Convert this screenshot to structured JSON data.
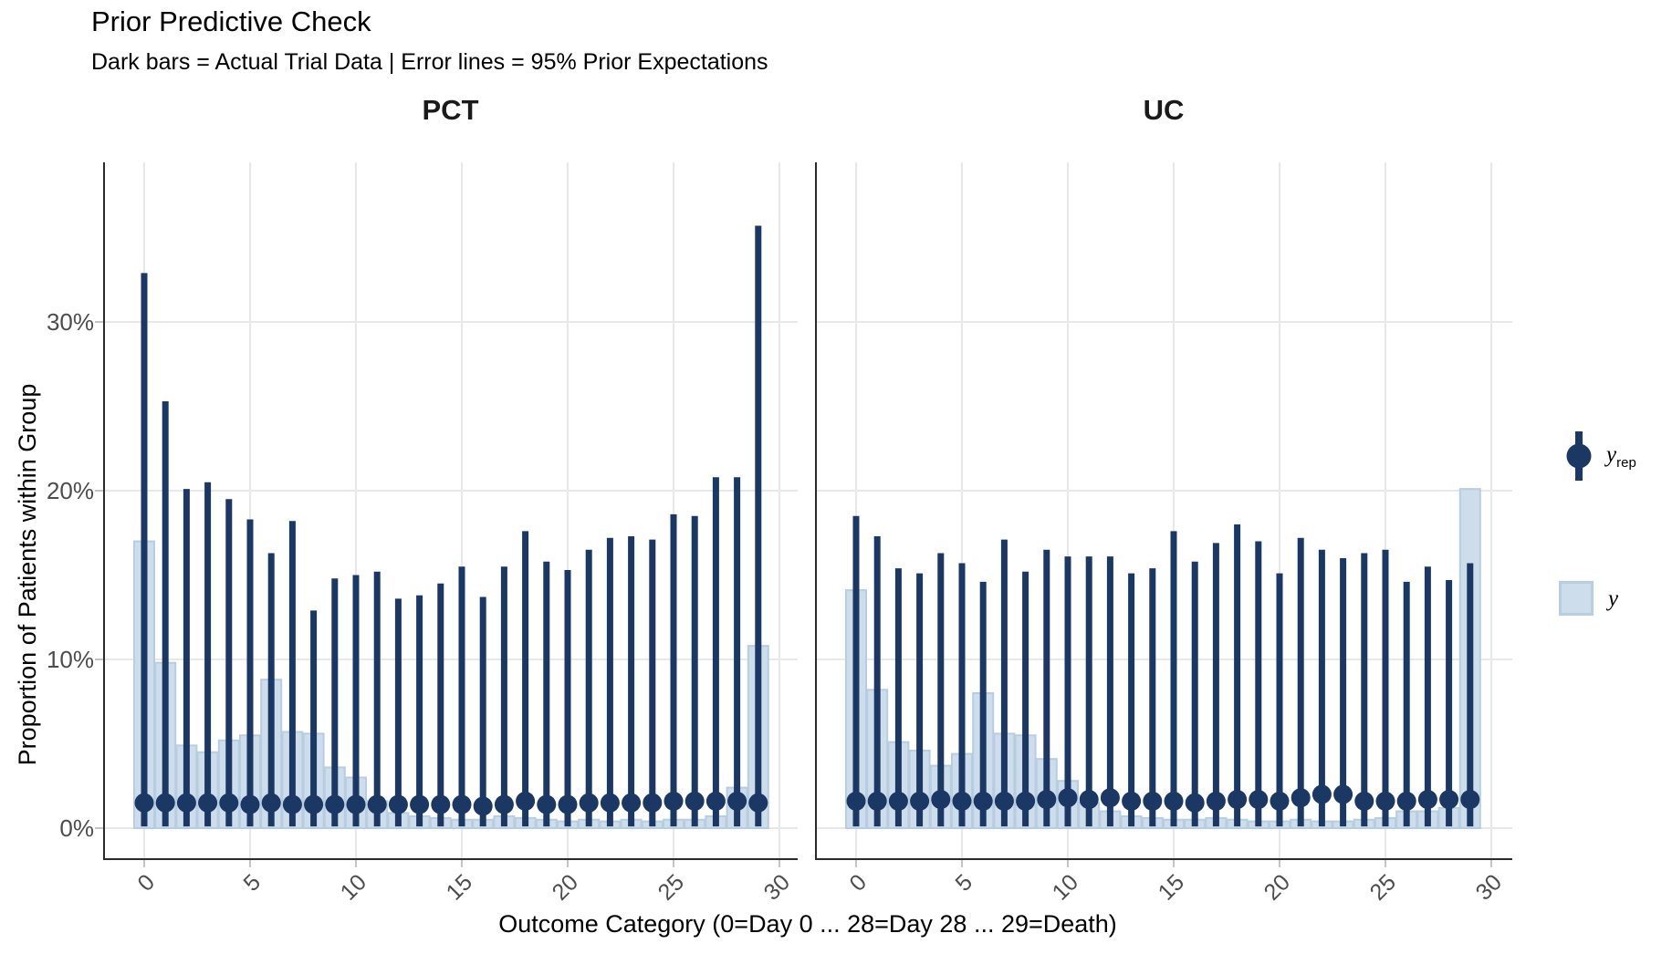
{
  "title": "Prior Predictive Check",
  "subtitle": "Dark bars = Actual Trial Data | Error lines = 95% Prior Expectations",
  "facets": [
    {
      "label": "PCT"
    },
    {
      "label": "UC"
    }
  ],
  "y_axis": {
    "title": "Proportion of Patients within Group",
    "tick_labels": [
      "0%",
      "10%",
      "20%",
      "30%"
    ]
  },
  "x_axis": {
    "title": "Outcome Category (0=Day 0 ... 28=Day 28 ... 29=Death)",
    "tick_labels": [
      "0",
      "5",
      "10",
      "15",
      "20",
      "25",
      "30"
    ]
  },
  "legend": {
    "yrep_label_base": "y",
    "yrep_label_sub": "rep",
    "y_label_base": "y"
  },
  "colors": {
    "dark_navy": "#1b3764",
    "light_fill": "#cdddec",
    "light_border": "#b7cde0",
    "gridline": "#e8e8e8",
    "axis_line": "#2b2b2b",
    "tick_text": "#4d4d4d",
    "tick_mark": "#c4c4c4",
    "text": "#000000"
  },
  "chart_data": {
    "type": "bar",
    "title": "Prior Predictive Check",
    "subtitle": "Dark bars = Actual Trial Data | Error lines = 95% Prior Expectations",
    "xlabel": "Outcome Category (0=Day 0 ... 28=Day 28 ... 29=Death)",
    "ylabel": "Proportion of Patients within Group",
    "ylim_pct": [
      0,
      40
    ],
    "y_ticks_pct": [
      0,
      10,
      20,
      30
    ],
    "x_ticks": [
      0,
      5,
      10,
      15,
      20,
      25,
      30
    ],
    "grid": true,
    "legend_position": "right",
    "categories": [
      0,
      1,
      2,
      3,
      4,
      5,
      6,
      7,
      8,
      9,
      10,
      11,
      12,
      13,
      14,
      15,
      16,
      17,
      18,
      19,
      20,
      21,
      22,
      23,
      24,
      25,
      26,
      27,
      28,
      29
    ],
    "yrep_lower_pct": 0.1,
    "panels": [
      {
        "name": "PCT",
        "y_actual_pct": [
          17.0,
          9.8,
          4.9,
          4.5,
          5.2,
          5.5,
          8.8,
          5.7,
          5.6,
          3.6,
          3.0,
          1.6,
          0.9,
          0.7,
          0.6,
          0.5,
          0.5,
          0.7,
          0.6,
          0.5,
          0.4,
          0.5,
          0.4,
          0.5,
          0.4,
          0.5,
          0.5,
          0.7,
          2.4,
          10.8
        ],
        "yrep_upper_pct": [
          32.9,
          25.3,
          20.1,
          20.5,
          19.5,
          18.3,
          16.3,
          18.2,
          12.9,
          14.8,
          15.0,
          15.2,
          13.6,
          13.8,
          14.5,
          15.5,
          13.7,
          15.5,
          17.6,
          15.8,
          15.3,
          16.5,
          17.2,
          17.3,
          17.1,
          18.6,
          18.5,
          20.8,
          20.8,
          35.7
        ],
        "yrep_median_pct": [
          1.5,
          1.5,
          1.5,
          1.5,
          1.5,
          1.4,
          1.5,
          1.4,
          1.4,
          1.4,
          1.4,
          1.4,
          1.4,
          1.4,
          1.4,
          1.4,
          1.3,
          1.4,
          1.6,
          1.4,
          1.4,
          1.5,
          1.5,
          1.5,
          1.5,
          1.6,
          1.6,
          1.6,
          1.6,
          1.5
        ]
      },
      {
        "name": "UC",
        "y_actual_pct": [
          14.1,
          8.2,
          5.1,
          4.6,
          3.7,
          4.4,
          8.0,
          5.6,
          5.5,
          4.1,
          2.8,
          1.5,
          1.0,
          0.7,
          0.6,
          0.5,
          0.5,
          0.6,
          0.5,
          0.4,
          0.4,
          0.5,
          0.4,
          0.4,
          0.5,
          0.6,
          1.0,
          1.0,
          1.2,
          20.1
        ],
        "yrep_upper_pct": [
          18.5,
          17.3,
          15.4,
          15.1,
          16.3,
          15.7,
          14.6,
          17.1,
          15.2,
          16.5,
          16.1,
          16.1,
          16.1,
          15.1,
          15.4,
          17.6,
          15.8,
          16.9,
          18.0,
          17.0,
          15.1,
          17.2,
          16.5,
          16.0,
          16.3,
          16.5,
          14.6,
          15.5,
          14.7,
          15.7
        ],
        "yrep_median_pct": [
          1.6,
          1.6,
          1.6,
          1.6,
          1.7,
          1.6,
          1.6,
          1.6,
          1.6,
          1.7,
          1.8,
          1.7,
          1.8,
          1.6,
          1.6,
          1.6,
          1.5,
          1.6,
          1.7,
          1.7,
          1.6,
          1.8,
          2.0,
          2.0,
          1.6,
          1.6,
          1.6,
          1.7,
          1.7,
          1.7
        ]
      }
    ]
  }
}
